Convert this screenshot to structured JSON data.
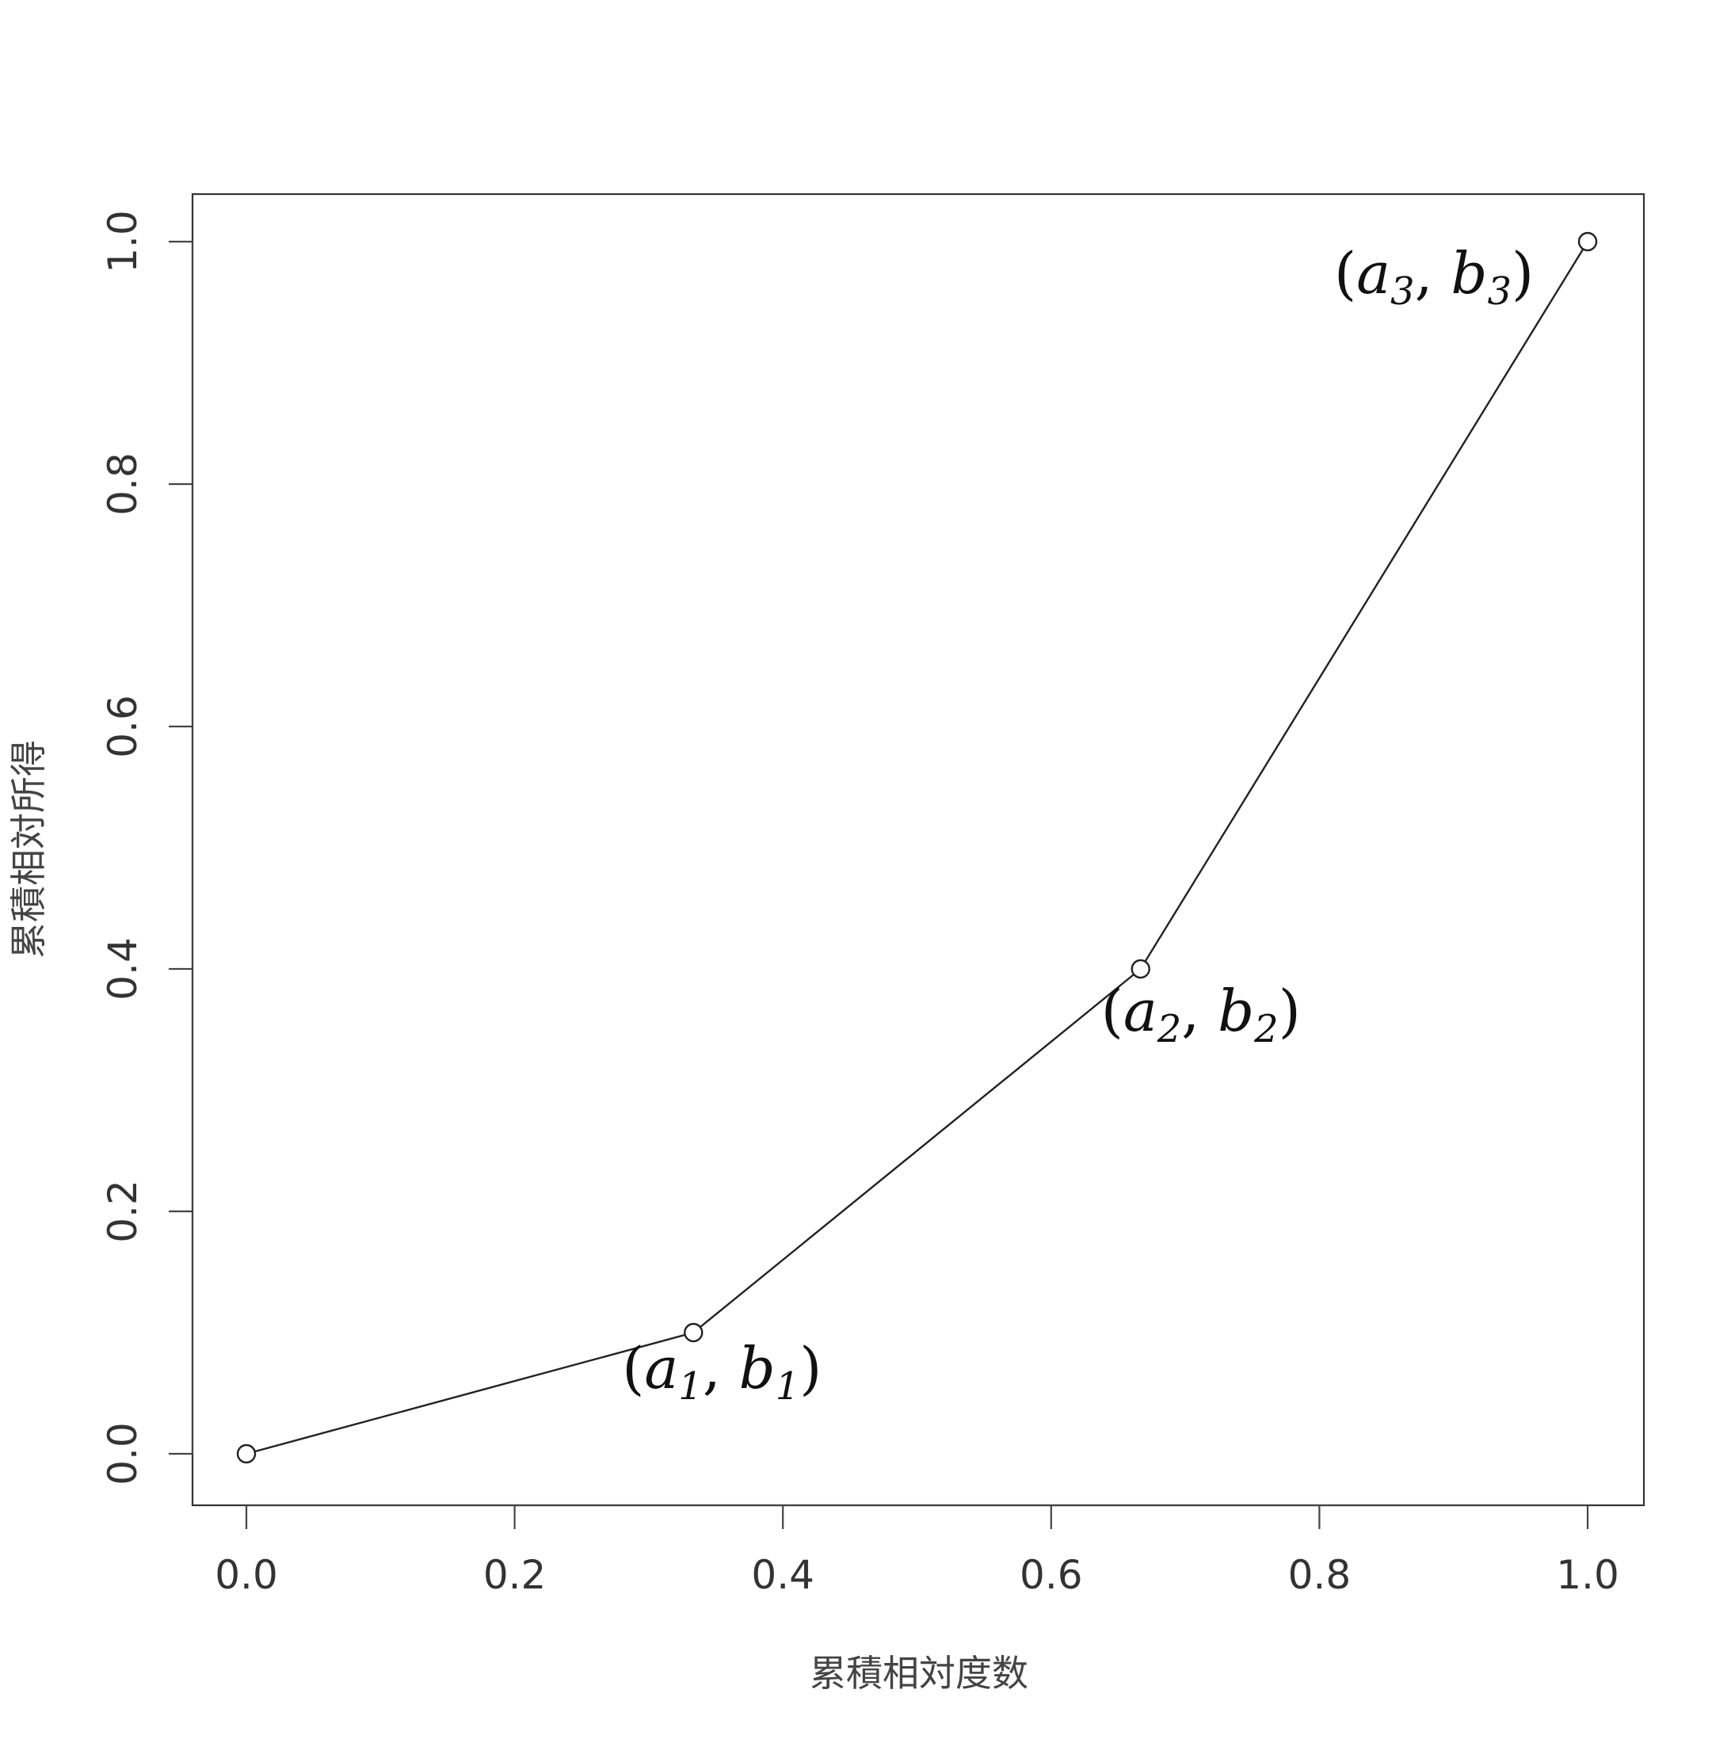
{
  "chart_data": {
    "type": "line",
    "xlabel": "累積相対度数",
    "ylabel": "累積相対所得",
    "xlim": [
      0.0,
      1.0
    ],
    "ylim": [
      0.0,
      1.0
    ],
    "xticks": [
      "0.0",
      "0.2",
      "0.4",
      "0.6",
      "0.8",
      "1.0"
    ],
    "yticks": [
      "0.0",
      "0.2",
      "0.4",
      "0.6",
      "0.8",
      "1.0"
    ],
    "grid": false,
    "series": [
      {
        "x": [
          0.0,
          0.3333,
          0.6667,
          1.0
        ],
        "y": [
          0.0,
          0.1,
          0.4,
          1.0
        ],
        "marker": "open-circle"
      }
    ],
    "annotations": [
      {
        "base": "a",
        "sub": "1",
        "base2": "b",
        "sub2": "1",
        "x": 0.3333,
        "y": 0.1
      },
      {
        "base": "a",
        "sub": "2",
        "base2": "b",
        "sub2": "2",
        "x": 0.6667,
        "y": 0.4
      },
      {
        "base": "a",
        "sub": "3",
        "base2": "b",
        "sub2": "3",
        "x": 1.0,
        "y": 1.0
      }
    ]
  }
}
